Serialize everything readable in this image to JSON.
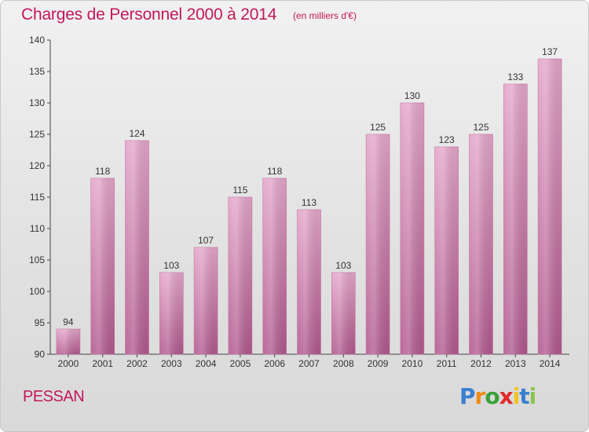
{
  "header": {
    "title": "Charges de Personnel 2000 à 2014",
    "subtitle": "(en milliers d'€)"
  },
  "footer": {
    "town": "PESSAN",
    "logo_letters": [
      "P",
      "r",
      "o",
      "x",
      "i",
      "t",
      "i"
    ],
    "logo_colors": [
      "#3a7fd1",
      "#f08a12",
      "#3aa03a",
      "#e02a2a",
      "#f0c419",
      "#3a7fd1",
      "#8bc34a"
    ]
  },
  "chart_data": {
    "type": "bar",
    "title": "Charges de Personnel 2000 à 2014",
    "subtitle": "(en milliers d'€)",
    "categories": [
      "2000",
      "2001",
      "2002",
      "2003",
      "2004",
      "2005",
      "2006",
      "2007",
      "2008",
      "2009",
      "2010",
      "2011",
      "2012",
      "2013",
      "2014"
    ],
    "values": [
      94,
      118,
      124,
      103,
      107,
      115,
      118,
      113,
      103,
      125,
      130,
      123,
      125,
      133,
      137
    ],
    "ylim": [
      90,
      140
    ],
    "yticks": [
      90,
      95,
      100,
      105,
      110,
      115,
      120,
      125,
      130,
      135,
      140
    ],
    "grid": false,
    "bar_color": "#d98bb8"
  }
}
